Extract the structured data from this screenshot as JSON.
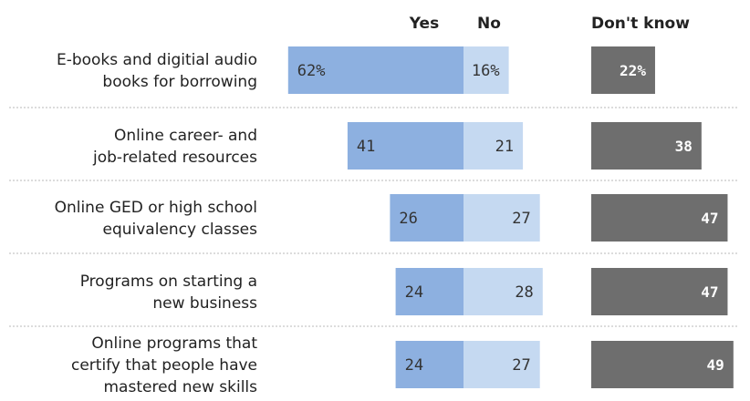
{
  "chart_data": {
    "type": "bar",
    "orientation": "horizontal",
    "stacked": "diverging",
    "columns": {
      "yes": "Yes",
      "no": "No",
      "dont_know": "Don't know"
    },
    "categories": [
      [
        "E-books and digitial audio",
        "books for borrowing"
      ],
      [
        "Online career- and",
        "job-related resources"
      ],
      [
        "Online GED or high school",
        "equivalency classes"
      ],
      [
        "Programs on starting a",
        "new business"
      ],
      [
        "Online programs that",
        "certify that people have",
        "mastered new skills"
      ]
    ],
    "series": [
      {
        "name": "Yes",
        "values": [
          62,
          41,
          26,
          24,
          24
        ],
        "labels": [
          "62%",
          "41",
          "26",
          "24",
          "24"
        ]
      },
      {
        "name": "No",
        "values": [
          16,
          21,
          27,
          28,
          27
        ],
        "labels": [
          "16%",
          "21",
          "27",
          "28",
          "27"
        ]
      },
      {
        "name": "Don't know",
        "values": [
          22,
          38,
          47,
          47,
          49
        ],
        "labels": [
          "22%",
          "38",
          "47",
          "47",
          "49"
        ]
      }
    ],
    "colors": {
      "yes": "#8db0e0",
      "no": "#c5d9f1",
      "dont_know": "#6e6e6e"
    },
    "legend": "top",
    "grid": false
  }
}
